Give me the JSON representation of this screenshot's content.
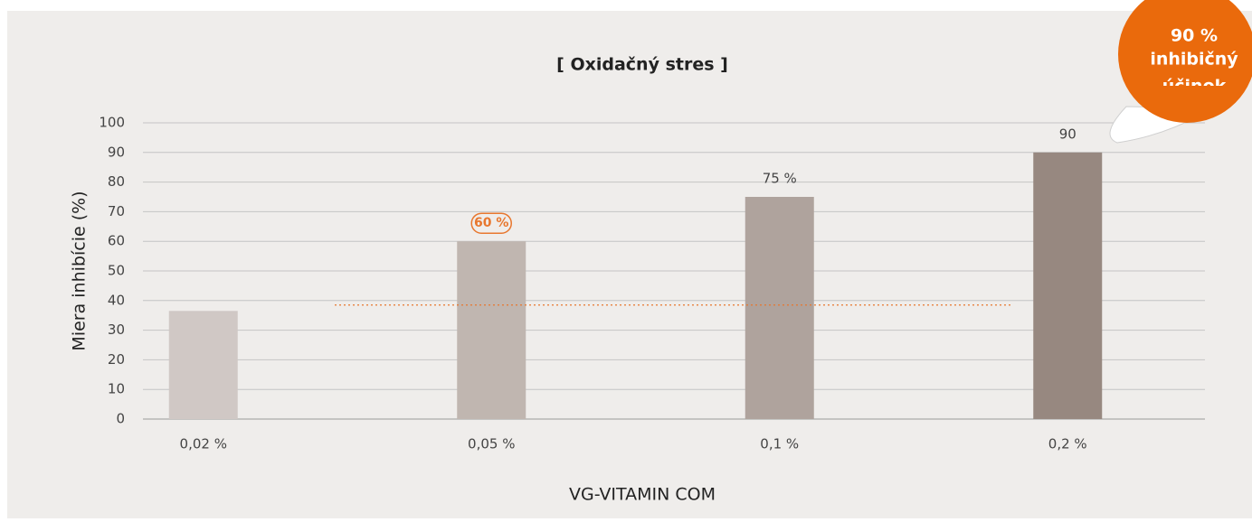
{
  "chart_data": {
    "type": "bar",
    "title": "[ Oxidačný stres ]",
    "x_label": "VG-VITAMIN COM",
    "y_label": "Miera inhibície (%)",
    "categories": [
      "0,02 %",
      "0,05 %",
      "0,1 %",
      "0,2 %"
    ],
    "values": [
      36.5,
      60,
      75,
      90
    ],
    "value_labels": [
      null,
      "60 %",
      "75 %",
      "90"
    ],
    "colors": [
      "#d0c8c5",
      "#c0b6b0",
      "#afa39d",
      "#978880"
    ],
    "ylim": [
      0,
      100
    ],
    "yticks": [
      0,
      10,
      20,
      30,
      40,
      50,
      60,
      70,
      80,
      90,
      100
    ],
    "grid": true,
    "reference_line": {
      "value": 38.5,
      "color": "#e8772e"
    },
    "badge": {
      "lines": [
        "90 %",
        "inhibičný",
        "účinok"
      ],
      "color": "#ea6a0c"
    }
  }
}
